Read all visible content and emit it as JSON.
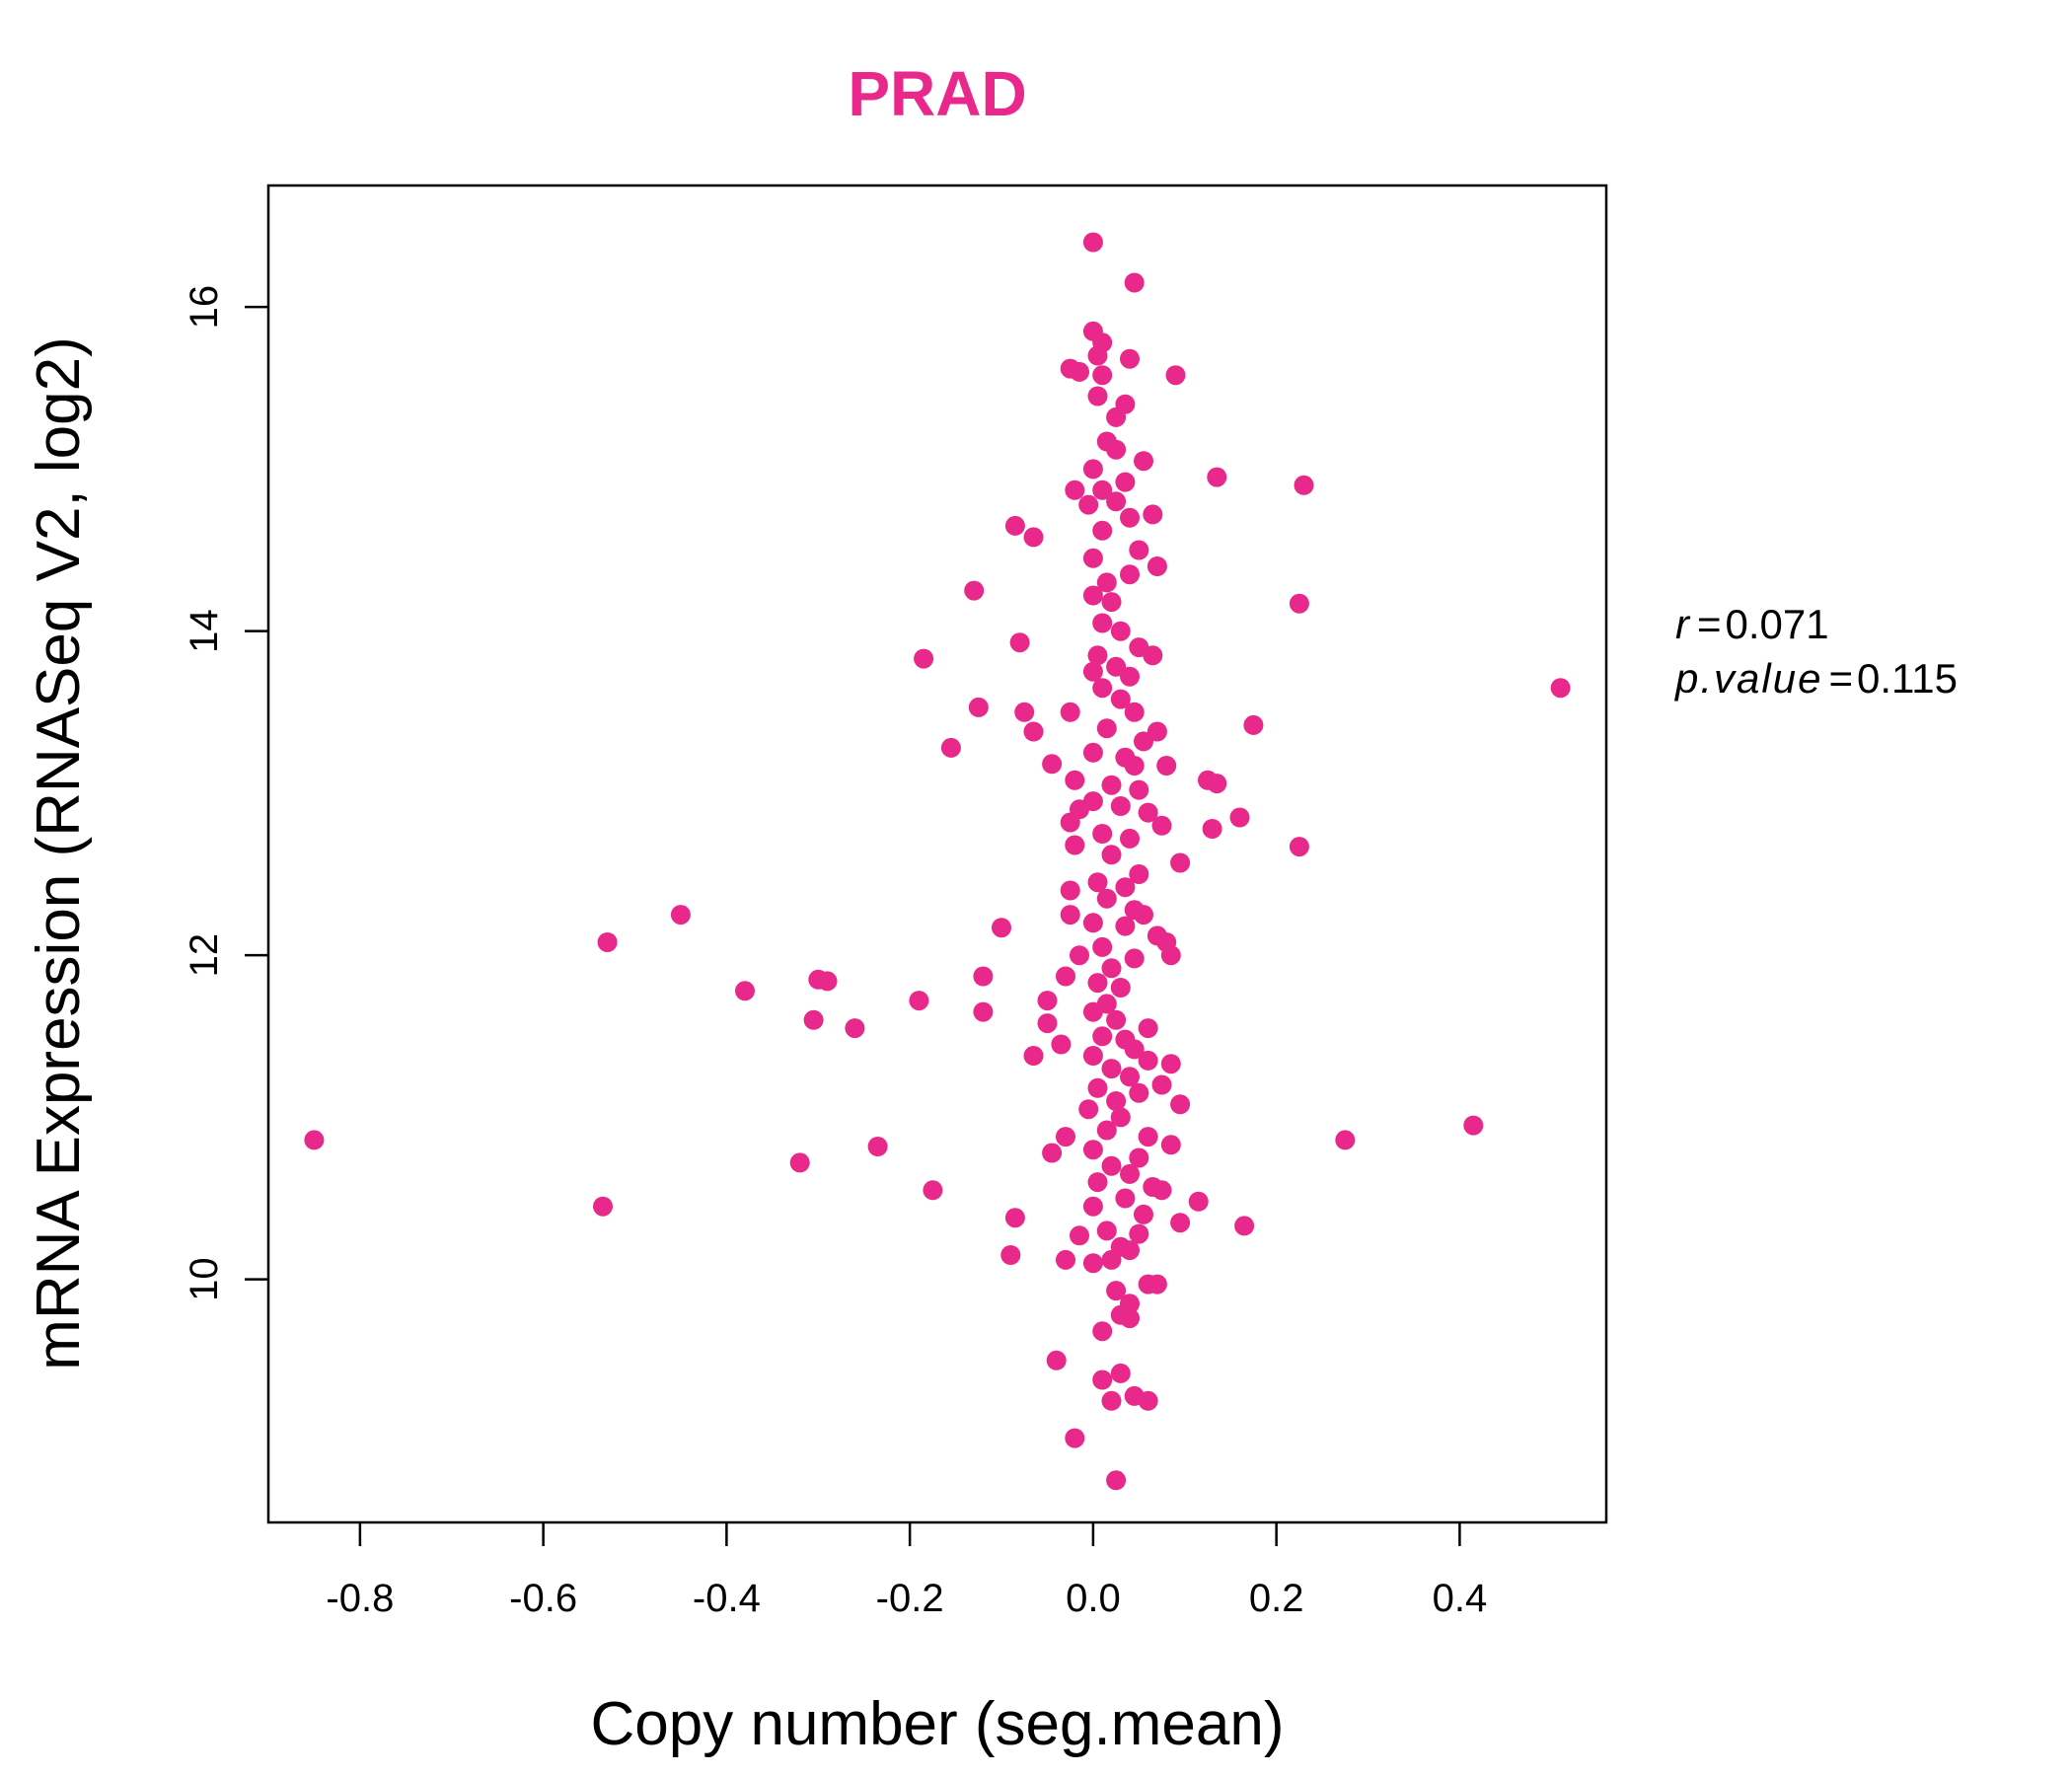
{
  "chart_data": {
    "type": "scatter",
    "title": "PRAD",
    "title_color": "#E8288A",
    "point_color": "#E8288A",
    "xlabel": "Copy number (seg.mean)",
    "ylabel": "mRNA Expression (RNASeq V2, log2)",
    "xlim": [
      -0.9,
      0.56
    ],
    "ylim": [
      8.5,
      16.75
    ],
    "xticks": [
      -0.8,
      -0.6,
      -0.4,
      -0.2,
      0.0,
      0.2,
      0.4
    ],
    "xtick_labels": [
      "-0.8",
      "-0.6",
      "-0.4",
      "-0.2",
      "0.0",
      "0.2",
      "0.4"
    ],
    "yticks": [
      10,
      12,
      14,
      16
    ],
    "ytick_labels": [
      "10",
      "12",
      "14",
      "16"
    ],
    "grid": false,
    "stats": {
      "r_label": "r",
      "r_value": "0.071",
      "p_label": "p.value",
      "p_value": "0.115"
    },
    "points": [
      [
        0.0,
        16.4
      ],
      [
        0.045,
        16.15
      ],
      [
        0.0,
        15.85
      ],
      [
        0.01,
        15.78
      ],
      [
        0.005,
        15.7
      ],
      [
        0.04,
        15.68
      ],
      [
        -0.025,
        15.62
      ],
      [
        -0.015,
        15.6
      ],
      [
        0.01,
        15.58
      ],
      [
        0.09,
        15.58
      ],
      [
        0.005,
        15.45
      ],
      [
        0.035,
        15.4
      ],
      [
        0.025,
        15.32
      ],
      [
        0.015,
        15.17
      ],
      [
        0.025,
        15.12
      ],
      [
        0.055,
        15.05
      ],
      [
        0.0,
        15.0
      ],
      [
        0.035,
        14.92
      ],
      [
        -0.02,
        14.87
      ],
      [
        0.01,
        14.87
      ],
      [
        0.025,
        14.8
      ],
      [
        -0.005,
        14.78
      ],
      [
        0.065,
        14.72
      ],
      [
        0.04,
        14.7
      ],
      [
        0.135,
        14.95
      ],
      [
        0.23,
        14.9
      ],
      [
        -0.085,
        14.65
      ],
      [
        -0.065,
        14.58
      ],
      [
        0.01,
        14.62
      ],
      [
        0.05,
        14.5
      ],
      [
        0.0,
        14.45
      ],
      [
        0.07,
        14.4
      ],
      [
        0.04,
        14.35
      ],
      [
        0.015,
        14.3
      ],
      [
        -0.13,
        14.25
      ],
      [
        0.0,
        14.22
      ],
      [
        0.02,
        14.18
      ],
      [
        0.225,
        14.17
      ],
      [
        0.01,
        14.05
      ],
      [
        0.03,
        14.0
      ],
      [
        -0.08,
        13.93
      ],
      [
        0.05,
        13.9
      ],
      [
        0.005,
        13.85
      ],
      [
        0.065,
        13.85
      ],
      [
        -0.185,
        13.83
      ],
      [
        0.025,
        13.78
      ],
      [
        0.0,
        13.75
      ],
      [
        0.04,
        13.72
      ],
      [
        0.01,
        13.65
      ],
      [
        0.51,
        13.65
      ],
      [
        0.03,
        13.58
      ],
      [
        -0.125,
        13.53
      ],
      [
        -0.075,
        13.5
      ],
      [
        -0.025,
        13.5
      ],
      [
        0.045,
        13.5
      ],
      [
        0.175,
        13.42
      ],
      [
        -0.065,
        13.38
      ],
      [
        0.015,
        13.4
      ],
      [
        0.07,
        13.38
      ],
      [
        0.055,
        13.32
      ],
      [
        -0.155,
        13.28
      ],
      [
        0.0,
        13.25
      ],
      [
        0.035,
        13.22
      ],
      [
        -0.045,
        13.18
      ],
      [
        0.045,
        13.17
      ],
      [
        0.08,
        13.17
      ],
      [
        0.125,
        13.08
      ],
      [
        0.135,
        13.06
      ],
      [
        -0.02,
        13.08
      ],
      [
        0.02,
        13.05
      ],
      [
        0.05,
        13.02
      ],
      [
        0.0,
        12.95
      ],
      [
        0.03,
        12.92
      ],
      [
        -0.015,
        12.9
      ],
      [
        0.06,
        12.88
      ],
      [
        0.16,
        12.85
      ],
      [
        -0.025,
        12.82
      ],
      [
        0.075,
        12.8
      ],
      [
        0.13,
        12.78
      ],
      [
        0.01,
        12.75
      ],
      [
        -0.02,
        12.68
      ],
      [
        0.04,
        12.72
      ],
      [
        0.225,
        12.67
      ],
      [
        0.02,
        12.62
      ],
      [
        0.095,
        12.57
      ],
      [
        0.05,
        12.5
      ],
      [
        0.005,
        12.45
      ],
      [
        0.035,
        12.42
      ],
      [
        -0.025,
        12.4
      ],
      [
        0.015,
        12.35
      ],
      [
        0.045,
        12.28
      ],
      [
        -0.025,
        12.25
      ],
      [
        0.055,
        12.25
      ],
      [
        -0.45,
        12.25
      ],
      [
        0.0,
        12.2
      ],
      [
        0.035,
        12.18
      ],
      [
        -0.1,
        12.17
      ],
      [
        0.07,
        12.12
      ],
      [
        0.08,
        12.08
      ],
      [
        -0.53,
        12.08
      ],
      [
        0.01,
        12.05
      ],
      [
        0.085,
        12.0
      ],
      [
        -0.015,
        12.0
      ],
      [
        0.045,
        11.98
      ],
      [
        0.02,
        11.92
      ],
      [
        -0.12,
        11.87
      ],
      [
        -0.03,
        11.87
      ],
      [
        0.005,
        11.83
      ],
      [
        -0.3,
        11.85
      ],
      [
        -0.29,
        11.84
      ],
      [
        0.03,
        11.8
      ],
      [
        -0.38,
        11.78
      ],
      [
        -0.05,
        11.72
      ],
      [
        -0.19,
        11.72
      ],
      [
        0.015,
        11.7
      ],
      [
        0.0,
        11.65
      ],
      [
        -0.12,
        11.65
      ],
      [
        0.025,
        11.6
      ],
      [
        -0.305,
        11.6
      ],
      [
        -0.05,
        11.58
      ],
      [
        -0.26,
        11.55
      ],
      [
        0.06,
        11.55
      ],
      [
        0.01,
        11.5
      ],
      [
        0.035,
        11.48
      ],
      [
        -0.035,
        11.45
      ],
      [
        0.045,
        11.42
      ],
      [
        -0.065,
        11.38
      ],
      [
        0.0,
        11.38
      ],
      [
        0.06,
        11.35
      ],
      [
        0.02,
        11.3
      ],
      [
        0.085,
        11.33
      ],
      [
        0.04,
        11.25
      ],
      [
        0.075,
        11.2
      ],
      [
        0.005,
        11.18
      ],
      [
        0.05,
        11.15
      ],
      [
        0.025,
        11.1
      ],
      [
        0.095,
        11.08
      ],
      [
        -0.005,
        11.05
      ],
      [
        0.03,
        11.0
      ],
      [
        0.415,
        10.95
      ],
      [
        0.015,
        10.92
      ],
      [
        -0.03,
        10.88
      ],
      [
        0.06,
        10.88
      ],
      [
        0.275,
        10.86
      ],
      [
        -0.85,
        10.86
      ],
      [
        0.085,
        10.83
      ],
      [
        -0.235,
        10.82
      ],
      [
        0.0,
        10.8
      ],
      [
        -0.045,
        10.78
      ],
      [
        0.05,
        10.75
      ],
      [
        -0.32,
        10.72
      ],
      [
        0.02,
        10.7
      ],
      [
        0.04,
        10.65
      ],
      [
        0.005,
        10.6
      ],
      [
        0.065,
        10.57
      ],
      [
        -0.175,
        10.55
      ],
      [
        0.075,
        10.55
      ],
      [
        0.035,
        10.5
      ],
      [
        0.115,
        10.48
      ],
      [
        -0.535,
        10.45
      ],
      [
        0.0,
        10.45
      ],
      [
        0.055,
        10.4
      ],
      [
        -0.085,
        10.38
      ],
      [
        0.095,
        10.35
      ],
      [
        0.165,
        10.33
      ],
      [
        0.015,
        10.3
      ],
      [
        -0.015,
        10.27
      ],
      [
        0.05,
        10.28
      ],
      [
        0.03,
        10.2
      ],
      [
        0.04,
        10.18
      ],
      [
        -0.09,
        10.15
      ],
      [
        -0.03,
        10.12
      ],
      [
        0.0,
        10.1
      ],
      [
        0.02,
        10.12
      ],
      [
        0.06,
        9.97
      ],
      [
        0.07,
        9.97
      ],
      [
        0.025,
        9.93
      ],
      [
        0.04,
        9.85
      ],
      [
        0.03,
        9.78
      ],
      [
        0.04,
        9.76
      ],
      [
        0.01,
        9.68
      ],
      [
        -0.04,
        9.5
      ],
      [
        0.03,
        9.42
      ],
      [
        0.01,
        9.38
      ],
      [
        0.045,
        9.28
      ],
      [
        0.02,
        9.25
      ],
      [
        0.06,
        9.25
      ],
      [
        -0.02,
        9.02
      ],
      [
        0.025,
        8.76
      ]
    ]
  }
}
